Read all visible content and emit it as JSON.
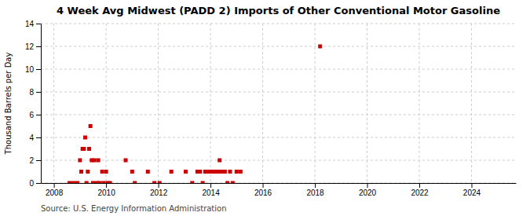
{
  "chart_data": {
    "type": "scatter",
    "title": "4 Week Avg Midwest (PADD 2) Imports of Other Conventional Motor Gasoline",
    "ylabel": "Thousand Barrels per Day",
    "source": "Source: U.S. Energy Information Administration",
    "x": [
      2008.6,
      2008.75,
      2008.9,
      2009.0,
      2009.05,
      2009.1,
      2009.15,
      2009.2,
      2009.25,
      2009.3,
      2009.35,
      2009.4,
      2009.45,
      2009.5,
      2009.55,
      2009.65,
      2009.7,
      2009.75,
      2009.85,
      2009.9,
      2010.0,
      2010.05,
      2010.15,
      2010.75,
      2011.0,
      2011.1,
      2011.6,
      2011.85,
      2012.05,
      2012.5,
      2013.05,
      2013.3,
      2013.5,
      2013.6,
      2013.7,
      2013.8,
      2013.9,
      2014.0,
      2014.05,
      2014.1,
      2014.15,
      2014.2,
      2014.25,
      2014.3,
      2014.35,
      2014.4,
      2014.45,
      2014.5,
      2014.55,
      2014.65,
      2014.75,
      2014.85,
      2015.0,
      2015.15,
      2018.2
    ],
    "values": [
      0,
      0,
      0,
      2,
      1,
      3,
      3,
      4,
      0,
      1,
      3,
      5,
      2,
      0,
      2,
      0,
      2,
      0,
      1,
      0,
      1,
      0,
      0,
      2,
      1,
      0,
      1,
      0,
      0,
      1,
      1,
      0,
      1,
      1,
      0,
      1,
      1,
      1,
      1,
      1,
      1,
      1,
      1,
      1,
      2,
      1,
      1,
      1,
      1,
      0,
      1,
      0,
      1,
      1,
      12
    ],
    "color": "#cc0000",
    "marker": "square",
    "xlim": [
      2007.5,
      2025.7
    ],
    "ylim": [
      0,
      14
    ],
    "xticks": [
      2008,
      2010,
      2012,
      2014,
      2016,
      2018,
      2020,
      2022,
      2024
    ],
    "yticks": [
      0,
      2,
      4,
      6,
      8,
      10,
      12,
      14
    ],
    "grid": true
  }
}
